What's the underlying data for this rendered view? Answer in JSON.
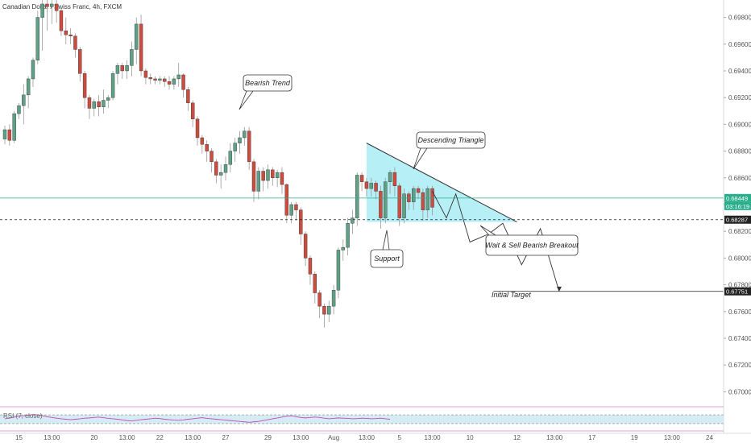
{
  "chart_data": {
    "type": "candlestick",
    "title": "Canadian Dollar / Swiss Franc, 4h, FXCM",
    "y_ticks": [
      "0.69800",
      "0.69600",
      "0.69400",
      "0.69200",
      "0.69000",
      "0.68800",
      "0.68600",
      "0.68400",
      "0.68200",
      "0.68000",
      "0.67800",
      "0.67600",
      "0.67400",
      "0.67200",
      "0.67000"
    ],
    "y_tick_values": [
      0.698,
      0.696,
      0.694,
      0.692,
      0.69,
      0.688,
      0.686,
      0.684,
      0.682,
      0.68,
      0.678,
      0.676,
      0.674,
      0.672,
      0.67
    ],
    "ylim": [
      0.669,
      0.6993
    ],
    "x_ticks": [
      "15",
      "13:00",
      "20",
      "13:00",
      "22",
      "13:00",
      "27",
      "29",
      "13:00",
      "Aug",
      "13:00",
      "5",
      "13:00",
      "10",
      "12",
      "13:00",
      "17",
      "19",
      "13:00",
      "24"
    ],
    "x_tick_index": [
      3,
      10,
      19,
      26,
      33,
      40,
      47,
      56,
      63,
      70,
      77,
      84,
      91,
      99,
      109,
      117,
      125,
      134,
      142,
      150
    ],
    "candles": [
      [
        0.6889,
        0.6896,
        0.6888,
        0.6899,
        0.6885
      ],
      [
        0.6896,
        0.6888,
        0.6887,
        0.69,
        0.6884
      ],
      [
        0.6888,
        0.6908,
        0.6886,
        0.691,
        0.6886
      ],
      [
        0.6908,
        0.6914,
        0.6906,
        0.6916,
        0.6904
      ],
      [
        0.6914,
        0.6922,
        0.6912,
        0.693,
        0.69
      ],
      [
        0.6922,
        0.6934,
        0.692,
        0.6936,
        0.6912
      ],
      [
        0.6934,
        0.6948,
        0.693,
        0.695,
        0.6928
      ],
      [
        0.6948,
        0.698,
        0.6946,
        0.6985,
        0.6945
      ],
      [
        0.698,
        0.699,
        0.697,
        0.6993,
        0.6955
      ],
      [
        0.699,
        0.6988,
        0.6975,
        0.6993,
        0.697
      ],
      [
        0.6988,
        0.699,
        0.6978,
        0.6993,
        0.6975
      ],
      [
        0.699,
        0.6985,
        0.698,
        0.6993,
        0.6976
      ],
      [
        0.6985,
        0.697,
        0.6968,
        0.6988,
        0.6966
      ],
      [
        0.697,
        0.6967,
        0.6962,
        0.698,
        0.696
      ],
      [
        0.6967,
        0.6966,
        0.696,
        0.6972,
        0.6962
      ],
      [
        0.6966,
        0.6956,
        0.6952,
        0.6968,
        0.695
      ],
      [
        0.6956,
        0.6938,
        0.6935,
        0.6958,
        0.6932
      ],
      [
        0.6938,
        0.692,
        0.6918,
        0.694,
        0.6912
      ],
      [
        0.692,
        0.6912,
        0.6906,
        0.6922,
        0.6904
      ],
      [
        0.6912,
        0.6917,
        0.6908,
        0.6919,
        0.6906
      ],
      [
        0.6917,
        0.6913,
        0.6908,
        0.6922,
        0.6906
      ],
      [
        0.6913,
        0.6918,
        0.691,
        0.6926,
        0.6908
      ],
      [
        0.6918,
        0.692,
        0.6914,
        0.6922,
        0.6912
      ],
      [
        0.692,
        0.6938,
        0.6918,
        0.694,
        0.6918
      ],
      [
        0.6938,
        0.6944,
        0.6936,
        0.6946,
        0.693
      ],
      [
        0.6944,
        0.694,
        0.6936,
        0.6946,
        0.6934
      ],
      [
        0.694,
        0.6944,
        0.6936,
        0.6948,
        0.6934
      ],
      [
        0.6944,
        0.6956,
        0.6938,
        0.6962,
        0.6936
      ],
      [
        0.6956,
        0.6975,
        0.695,
        0.698,
        0.6945
      ],
      [
        0.6975,
        0.694,
        0.6938,
        0.6982,
        0.6936
      ],
      [
        0.694,
        0.6935,
        0.693,
        0.6942,
        0.693
      ],
      [
        0.6935,
        0.6934,
        0.6932,
        0.6938,
        0.693
      ],
      [
        0.6934,
        0.6933,
        0.693,
        0.6936,
        0.693
      ],
      [
        0.6933,
        0.6934,
        0.693,
        0.6936,
        0.693
      ],
      [
        0.6934,
        0.6932,
        0.693,
        0.6936,
        0.6928
      ],
      [
        0.6932,
        0.693,
        0.6928,
        0.6936,
        0.6926
      ],
      [
        0.693,
        0.6934,
        0.6928,
        0.6936,
        0.6926
      ],
      [
        0.6934,
        0.6937,
        0.693,
        0.6946,
        0.6928
      ],
      [
        0.6937,
        0.6926,
        0.6922,
        0.6938,
        0.692
      ],
      [
        0.6926,
        0.6916,
        0.6912,
        0.6928,
        0.691
      ],
      [
        0.6916,
        0.6904,
        0.69,
        0.6918,
        0.6898
      ],
      [
        0.6904,
        0.689,
        0.6886,
        0.6906,
        0.6884
      ],
      [
        0.689,
        0.6885,
        0.688,
        0.6892,
        0.6878
      ],
      [
        0.6885,
        0.688,
        0.6876,
        0.6888,
        0.6872
      ],
      [
        0.688,
        0.6872,
        0.6868,
        0.6882,
        0.6864
      ],
      [
        0.6872,
        0.6862,
        0.6858,
        0.6874,
        0.6856
      ],
      [
        0.6862,
        0.6864,
        0.6856,
        0.687,
        0.6852
      ],
      [
        0.6864,
        0.687,
        0.686,
        0.6876,
        0.6858
      ],
      [
        0.687,
        0.688,
        0.6866,
        0.6886,
        0.6864
      ],
      [
        0.688,
        0.6886,
        0.6876,
        0.689,
        0.6872
      ],
      [
        0.6886,
        0.689,
        0.688,
        0.6895,
        0.6878
      ],
      [
        0.689,
        0.6895,
        0.6886,
        0.6898,
        0.6884
      ],
      [
        0.6895,
        0.6872,
        0.6868,
        0.6898,
        0.6866
      ],
      [
        0.6872,
        0.685,
        0.6846,
        0.6874,
        0.6842
      ],
      [
        0.685,
        0.6865,
        0.6846,
        0.6868,
        0.6844
      ],
      [
        0.6865,
        0.6858,
        0.6852,
        0.6868,
        0.685
      ],
      [
        0.6858,
        0.6866,
        0.6854,
        0.687,
        0.6852
      ],
      [
        0.6866,
        0.686,
        0.6856,
        0.6868,
        0.6854
      ],
      [
        0.686,
        0.6864,
        0.6855,
        0.6866,
        0.6853
      ],
      [
        0.6864,
        0.6855,
        0.6851,
        0.6868,
        0.6848
      ],
      [
        0.6855,
        0.6832,
        0.6828,
        0.6856,
        0.6826
      ],
      [
        0.6832,
        0.684,
        0.6828,
        0.6842,
        0.6826
      ],
      [
        0.684,
        0.6836,
        0.683,
        0.6842,
        0.6828
      ],
      [
        0.6836,
        0.6818,
        0.6812,
        0.6838,
        0.681
      ],
      [
        0.6818,
        0.68,
        0.6796,
        0.682,
        0.6794
      ],
      [
        0.68,
        0.6788,
        0.6782,
        0.6802,
        0.678
      ],
      [
        0.6788,
        0.6774,
        0.6768,
        0.679,
        0.6766
      ],
      [
        0.6774,
        0.6764,
        0.676,
        0.6776,
        0.6755
      ],
      [
        0.6764,
        0.6758,
        0.6754,
        0.6766,
        0.6748
      ],
      [
        0.6758,
        0.6764,
        0.6754,
        0.6768,
        0.6752
      ],
      [
        0.6764,
        0.6776,
        0.676,
        0.678,
        0.6758
      ],
      [
        0.6776,
        0.6806,
        0.6772,
        0.6808,
        0.677
      ],
      [
        0.6806,
        0.6808,
        0.68,
        0.6814,
        0.6798
      ],
      [
        0.6808,
        0.6826,
        0.6804,
        0.683,
        0.6802
      ],
      [
        0.6826,
        0.683,
        0.682,
        0.6836,
        0.6818
      ],
      [
        0.683,
        0.6862,
        0.6826,
        0.6864,
        0.6824
      ],
      [
        0.6862,
        0.6857,
        0.6852,
        0.6864,
        0.685
      ],
      [
        0.6857,
        0.6852,
        0.6848,
        0.686,
        0.6846
      ],
      [
        0.6852,
        0.6856,
        0.6848,
        0.686,
        0.6846
      ],
      [
        0.6856,
        0.685,
        0.6846,
        0.6858,
        0.6844
      ],
      [
        0.685,
        0.683,
        0.6828,
        0.6854,
        0.6822
      ],
      [
        0.683,
        0.6857,
        0.6828,
        0.686,
        0.6826
      ],
      [
        0.6857,
        0.6864,
        0.6852,
        0.6866,
        0.6848
      ],
      [
        0.6864,
        0.6854,
        0.685,
        0.6868,
        0.6846
      ],
      [
        0.6854,
        0.683,
        0.6828,
        0.6856,
        0.6824
      ],
      [
        0.683,
        0.6848,
        0.6828,
        0.6852,
        0.6826
      ],
      [
        0.6848,
        0.6842,
        0.6838,
        0.685,
        0.6836
      ],
      [
        0.6842,
        0.6852,
        0.6838,
        0.6854,
        0.6836
      ],
      [
        0.6852,
        0.6849,
        0.6846,
        0.6854,
        0.6844
      ],
      [
        0.6849,
        0.6836,
        0.6832,
        0.6852,
        0.6828
      ],
      [
        0.6836,
        0.6852,
        0.6832,
        0.6854,
        0.683
      ],
      [
        0.6852,
        0.6838,
        0.6834,
        0.6854,
        0.6832
      ]
    ],
    "line_projection": [
      [
        91,
        0.685
      ],
      [
        94,
        0.683
      ],
      [
        96,
        0.6848
      ],
      [
        99,
        0.6812
      ],
      [
        103,
        0.6818
      ],
      [
        106,
        0.6826
      ],
      [
        110,
        0.6795
      ],
      [
        114,
        0.6822
      ],
      [
        118,
        0.6775
      ]
    ],
    "triangle": {
      "top_left": [
        77,
        0.6886
      ],
      "apex": [
        109,
        0.6827
      ],
      "base_left": [
        77,
        0.6827
      ]
    },
    "support_level": 0.68287,
    "current_price": 0.68449,
    "target_level": 0.67751,
    "price_tags": {
      "current": "0.68449",
      "countdown": "03:16:19",
      "support": "0.68287",
      "target": "0.67751"
    },
    "annotations": {
      "bearish_trend": "Bearish Trend",
      "descending_triangle": "Descending Triangle",
      "support": "Support",
      "wait_sell": "Wait & Sell Bearish Breakout",
      "initial_target": "Initial Target"
    },
    "rsi": {
      "label": "RSI (7, close)",
      "values": [
        52,
        55,
        60,
        64,
        66,
        68,
        72,
        70,
        66,
        62,
        58,
        55,
        52,
        50,
        48,
        50,
        52,
        55,
        56,
        58,
        60,
        57,
        54,
        52,
        50,
        47,
        44,
        42,
        45,
        48,
        50,
        52,
        55,
        53,
        50,
        48,
        46,
        45,
        47,
        50,
        52,
        55,
        57,
        54,
        52,
        50,
        48,
        46,
        44,
        42,
        40,
        38,
        36,
        38,
        40,
        44,
        48,
        52,
        56,
        60,
        64,
        66,
        62,
        58,
        56,
        58,
        60,
        58,
        55,
        52,
        54,
        56,
        55,
        54,
        52,
        53,
        55,
        54,
        52,
        53,
        55,
        52,
        50
      ],
      "upper": 70,
      "lower": 30
    },
    "colors": {
      "up": "#5ea187",
      "down": "#cd4b3f",
      "triangle_fill": "#9fe9f4",
      "rsi_line": "#c24bb4",
      "rsi_fill": "#d6ecf5",
      "current_line": "#2aaf8d"
    }
  }
}
